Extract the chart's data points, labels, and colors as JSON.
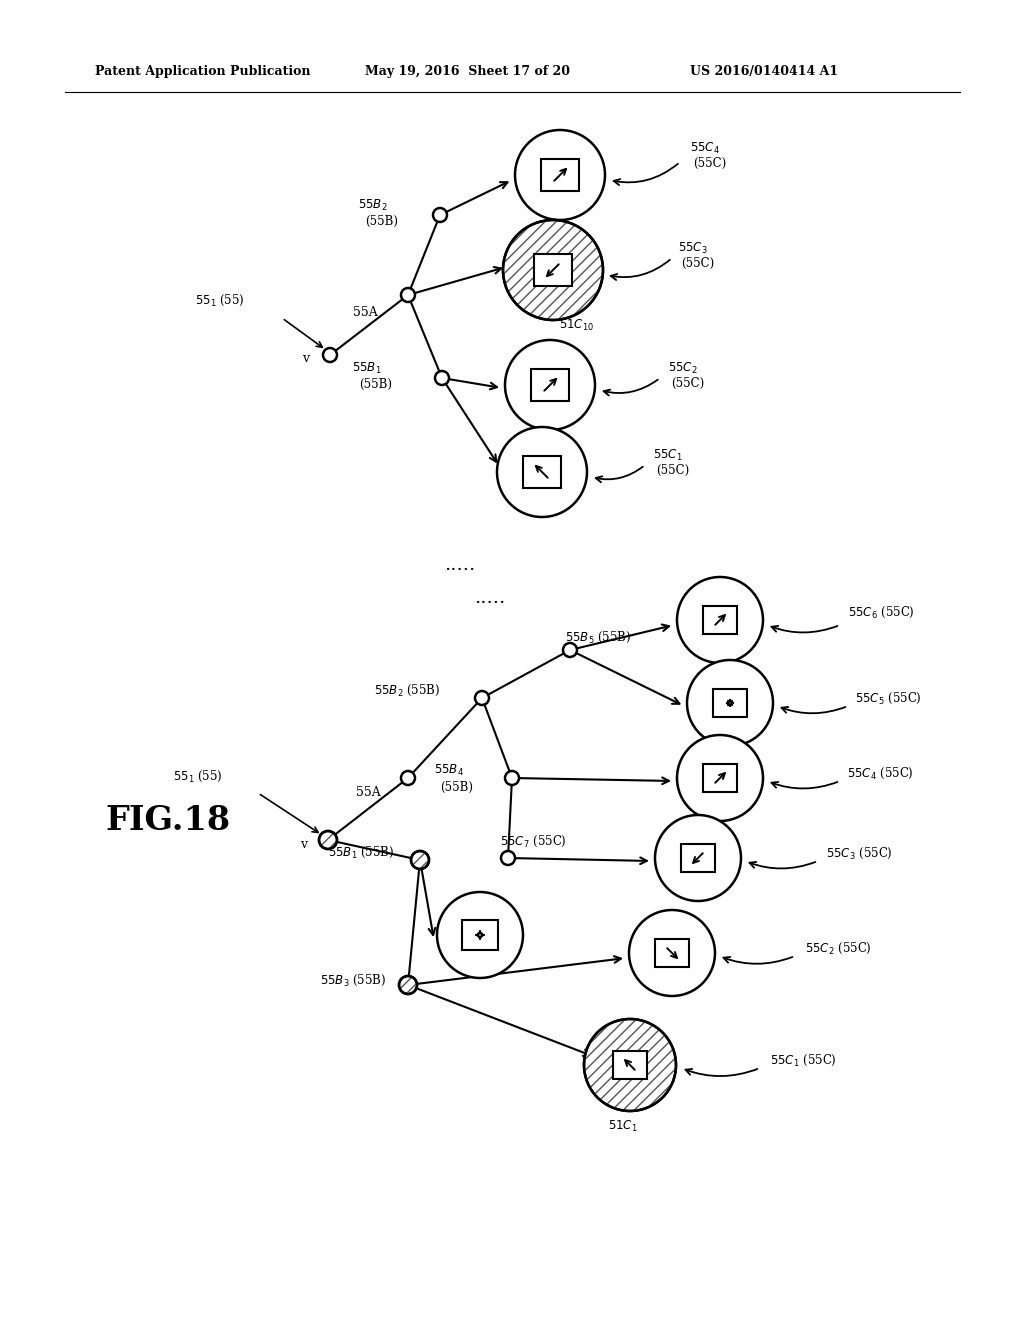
{
  "header_left": "Patent Application Publication",
  "header_mid": "May 19, 2016  Sheet 17 of 20",
  "header_right": "US 2016/0140414 A1",
  "fig_label": "FIG.18",
  "bg_color": "#ffffff"
}
